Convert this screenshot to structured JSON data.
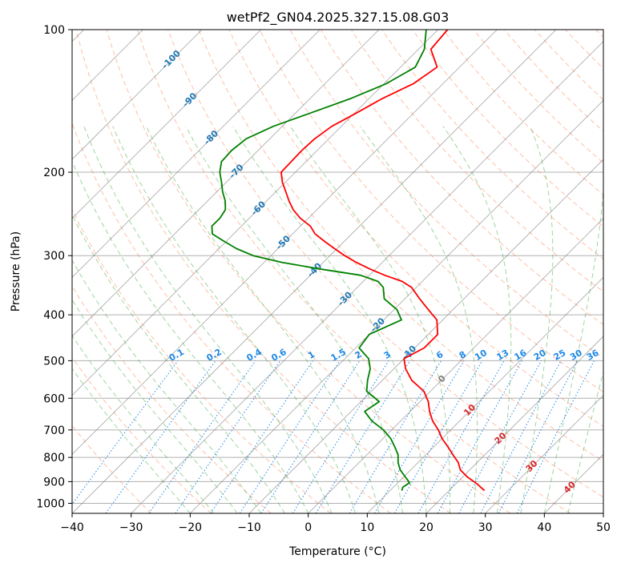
{
  "chart_data": {
    "type": "line",
    "title": "wetPf2_GN04.2025.327.15.08.G03",
    "xlabel": "Temperature (°C)",
    "ylabel": "Pressure (hPa)",
    "xlim": [
      -40,
      50
    ],
    "ylim": [
      1050,
      100
    ],
    "y_scale": "log",
    "skew": "skew-T",
    "grid": true,
    "x_ticks": [
      "−40",
      "−30",
      "−20",
      "−10",
      "0",
      "10",
      "20",
      "30",
      "40",
      "50"
    ],
    "y_ticks": [
      "100",
      "200",
      "300",
      "400",
      "500",
      "600",
      "700",
      "800",
      "900",
      "1000"
    ],
    "colors": {
      "temperature": "#ff0000",
      "dewpoint": "#008000",
      "dry_adiabat": "#ff7f50",
      "moist_adiabat": "#2ca02c",
      "mixing_ratio": "#1e88e5",
      "isotherm": "#808080",
      "isotherm_label": "#1f77b4",
      "isotherm_label_warm": "#d62728",
      "isotherm_label_zero": "#808080",
      "grid": "#b0b0b0"
    },
    "isotherm_labels": [
      {
        "t": -100,
        "p": 115,
        "text": "-100"
      },
      {
        "t": -90,
        "p": 140,
        "text": "-90"
      },
      {
        "t": -80,
        "p": 168,
        "text": "-80"
      },
      {
        "t": -70,
        "p": 198,
        "text": "-70"
      },
      {
        "t": -60,
        "p": 237,
        "text": "-60"
      },
      {
        "t": -50,
        "p": 280,
        "text": "-50"
      },
      {
        "t": -40,
        "p": 320,
        "text": "-40"
      },
      {
        "t": -30,
        "p": 368,
        "text": "-30"
      },
      {
        "t": -20,
        "p": 418,
        "text": "-20"
      },
      {
        "t": -10,
        "p": 478,
        "text": "-10"
      },
      {
        "t": 0,
        "p": 543,
        "text": "0"
      },
      {
        "t": 10,
        "p": 632,
        "text": "10"
      },
      {
        "t": 20,
        "p": 725,
        "text": "20"
      },
      {
        "t": 30,
        "p": 830,
        "text": "30"
      },
      {
        "t": 40,
        "p": 920,
        "text": "40"
      }
    ],
    "mixing_ratio_labels": [
      "0.1",
      "0.2",
      "0.4",
      "0.6",
      "1",
      "1.5",
      "2",
      "3",
      "4",
      "6",
      "8",
      "10",
      "13",
      "16",
      "20",
      "25",
      "30",
      "36"
    ],
    "mixing_ratio_values": [
      0.1,
      0.2,
      0.4,
      0.6,
      1,
      1.5,
      2,
      3,
      4,
      6,
      8,
      10,
      13,
      16,
      20,
      25,
      30,
      36
    ],
    "temperature": {
      "p": [
        940,
        910,
        880,
        850,
        820,
        790,
        760,
        730,
        700,
        670,
        640,
        610,
        580,
        550,
        520,
        495,
        470,
        440,
        410,
        390,
        370,
        350,
        340,
        330,
        320,
        310,
        300,
        290,
        280,
        270,
        260,
        250,
        240,
        230,
        220,
        210,
        200,
        190,
        180,
        170,
        160,
        150,
        140,
        130,
        120,
        110,
        100
      ],
      "t": [
        26.0,
        23.6,
        20.8,
        18.4,
        16.8,
        14.6,
        12.4,
        10.0,
        7.9,
        5.4,
        3.3,
        1.4,
        -1.1,
        -5.0,
        -8.0,
        -10.0,
        -8.4,
        -8.4,
        -11.0,
        -14.2,
        -17.5,
        -20.8,
        -23.4,
        -27.4,
        -31.0,
        -34.4,
        -37.5,
        -40.4,
        -43.3,
        -46.2,
        -48.3,
        -51.4,
        -54.0,
        -56.2,
        -58.3,
        -60.5,
        -62.4,
        -62.5,
        -62.6,
        -62.4,
        -61.6,
        -59.7,
        -57.8,
        -55.0,
        -53.8,
        -57.9,
        -58.4
      ]
    },
    "dewpoint": {
      "p": [
        940,
        925,
        905,
        880,
        850,
        820,
        790,
        760,
        730,
        700,
        670,
        640,
        610,
        580,
        550,
        520,
        495,
        470,
        440,
        410,
        390,
        370,
        350,
        340,
        330,
        320,
        310,
        300,
        290,
        280,
        270,
        260,
        250,
        240,
        230,
        220,
        210,
        200,
        190,
        180,
        170,
        160,
        150,
        140,
        130,
        120,
        110,
        100
      ],
      "t": [
        12.0,
        11.6,
        12.0,
        10.3,
        8.2,
        6.6,
        5.3,
        3.4,
        1.3,
        -1.4,
        -4.9,
        -7.7,
        -6.9,
        -10.8,
        -12.5,
        -14.0,
        -16.0,
        -19.4,
        -20.0,
        -17.0,
        -19.5,
        -23.5,
        -25.6,
        -27.5,
        -31.5,
        -39.5,
        -47.0,
        -53.0,
        -57.0,
        -60.3,
        -63.6,
        -65.0,
        -65.0,
        -65.5,
        -67.0,
        -69.0,
        -70.8,
        -72.8,
        -74.3,
        -74.5,
        -74.0,
        -71.5,
        -67.5,
        -63.2,
        -59.6,
        -57.5,
        -59.0,
        -62.0
      ]
    }
  }
}
